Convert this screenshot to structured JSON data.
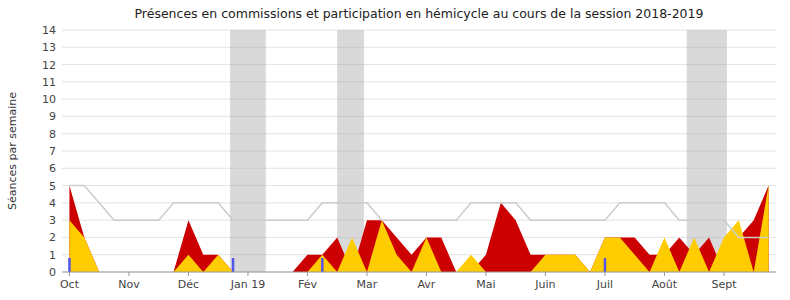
{
  "chart_data": {
    "type": "area",
    "title": "Présences en commissions et participation en hémicycle au cours de la session 2018-2019",
    "y_label": "Séances par semaine",
    "categories": [
      "Oct",
      null,
      null,
      null,
      "Nov",
      null,
      null,
      null,
      "Déc",
      null,
      null,
      null,
      "Jan 19",
      null,
      null,
      null,
      "Fév",
      null,
      null,
      null,
      "Mar",
      null,
      null,
      null,
      "Avr",
      null,
      null,
      null,
      "Mai",
      null,
      null,
      null,
      "Juin",
      null,
      null,
      null,
      "Juil",
      null,
      null,
      null,
      "Août",
      null,
      null,
      null,
      "Sept",
      null,
      null,
      null
    ],
    "series": [
      {
        "type": "area",
        "color": "#cc0000",
        "values": [
          5,
          2,
          0,
          0,
          0,
          0,
          0,
          0,
          3,
          1,
          1,
          0,
          0,
          0,
          0,
          0,
          1,
          1,
          2,
          0,
          3,
          3,
          2,
          1,
          2,
          2,
          0,
          0,
          1,
          4,
          3,
          1,
          1,
          1,
          1,
          0,
          2,
          2,
          2,
          1,
          1,
          2,
          1,
          2,
          0,
          2,
          3,
          5
        ]
      },
      {
        "type": "area",
        "color": "#ffcc00",
        "values": [
          3,
          2,
          0,
          0,
          0,
          0,
          0,
          0,
          1,
          0,
          1,
          0,
          0,
          0,
          0,
          0,
          0,
          1,
          0,
          2,
          0,
          3,
          1,
          0,
          2,
          0,
          0,
          1,
          0,
          0,
          0,
          0,
          1,
          1,
          1,
          0,
          2,
          2,
          1,
          0,
          2,
          0,
          2,
          0,
          2,
          3,
          0,
          5
        ]
      },
      {
        "type": "line",
        "color": "#cccccc",
        "values": [
          5,
          5,
          4,
          3,
          3,
          3,
          3,
          4,
          4,
          4,
          4,
          3,
          3,
          3,
          3,
          3,
          3,
          4,
          4,
          4,
          4,
          3,
          3,
          3,
          3,
          3,
          3,
          4,
          4,
          4,
          4,
          3,
          3,
          3,
          3,
          3,
          3,
          4,
          4,
          4,
          4,
          3,
          3,
          3,
          3,
          2,
          2,
          2
        ]
      }
    ],
    "bands": [
      [
        10.8,
        13.2
      ],
      [
        18.0,
        19.8
      ],
      [
        41.5,
        44.2
      ]
    ],
    "highlight_weeks": [
      0,
      11,
      17,
      36
    ],
    "ylim": [
      0,
      14
    ],
    "yticks": [
      0,
      1,
      2,
      3,
      4,
      5,
      6,
      7,
      8,
      9,
      10,
      11,
      12,
      13,
      14
    ],
    "grid": true
  }
}
